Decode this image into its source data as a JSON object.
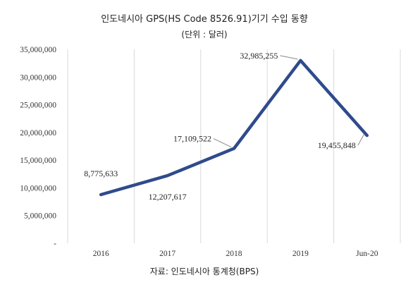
{
  "chart_data": {
    "type": "line",
    "title": "인도네시아 GPS(HS Code 8526.91)기기 수입 동향",
    "subtitle": "(단위 : 달러)",
    "source": "자료: 인도네시아 통계청(BPS)",
    "categories": [
      "2016",
      "2017",
      "2018",
      "2019",
      "Jun-20"
    ],
    "series": [
      {
        "values": [
          8775633,
          12207617,
          17109522,
          32985255,
          19455848
        ],
        "labels": [
          "8,775,633",
          "12,207,617",
          "17,109,522",
          "32,985,255",
          "19,455,848"
        ],
        "color": "#2f4b8c"
      }
    ],
    "ylim": [
      0,
      35000000
    ],
    "y_ticks": [
      0,
      5000000,
      10000000,
      15000000,
      20000000,
      25000000,
      30000000,
      35000000
    ],
    "y_tick_labels": [
      "-",
      "5,000,000",
      "10,000,000",
      "15,000,000",
      "20,000,000",
      "25,000,000",
      "30,000,000",
      "35,000,000"
    ],
    "grid": "vertical",
    "legend": "none"
  }
}
